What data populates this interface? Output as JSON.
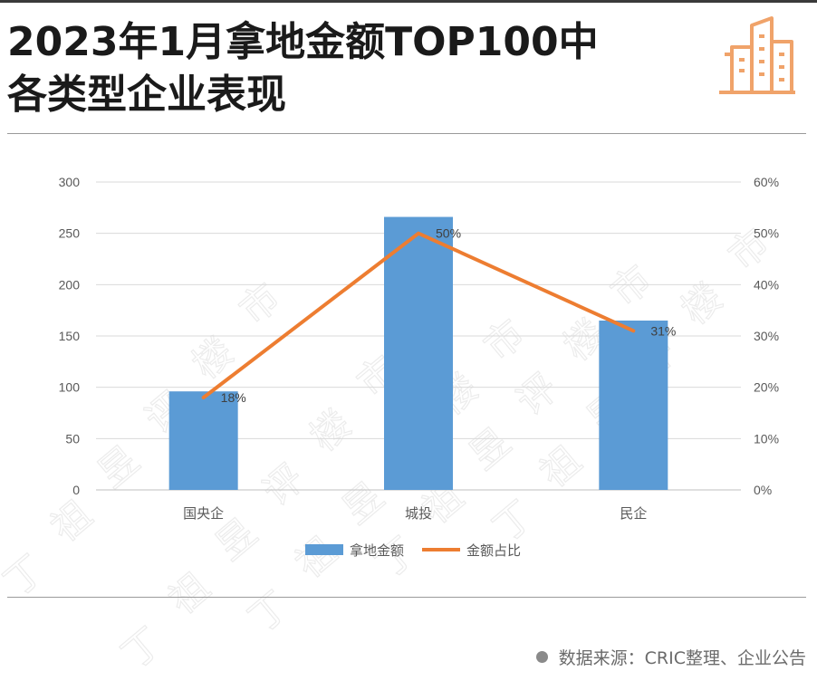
{
  "header": {
    "title_line1": "2023年1月拿地金额TOP100中",
    "title_line2": "各类型企业表现",
    "logo_icon": "buildings-icon"
  },
  "chart_data": {
    "type": "bar",
    "categories": [
      "国央企",
      "城投",
      "民企"
    ],
    "series": [
      {
        "name": "拿地金额",
        "type": "bar",
        "axis": "left",
        "values": [
          96,
          266,
          165
        ],
        "color": "#5b9bd5"
      },
      {
        "name": "金额占比",
        "type": "line",
        "axis": "right",
        "values": [
          18,
          50,
          31
        ],
        "labels": [
          "18%",
          "50%",
          "31%"
        ],
        "color": "#ed7d31"
      }
    ],
    "left_axis": {
      "ylim": [
        0,
        300
      ],
      "ticks": [
        "0",
        "50",
        "100",
        "150",
        "200",
        "250",
        "300"
      ]
    },
    "right_axis": {
      "ylim": [
        0,
        60
      ],
      "ticks": [
        "0%",
        "10%",
        "20%",
        "30%",
        "40%",
        "50%",
        "60%"
      ]
    },
    "grid": true,
    "legend": "bottom"
  },
  "source": {
    "text": "数据来源：CRIC整理、企业公告"
  },
  "watermark": "丁祖昱评楼市"
}
